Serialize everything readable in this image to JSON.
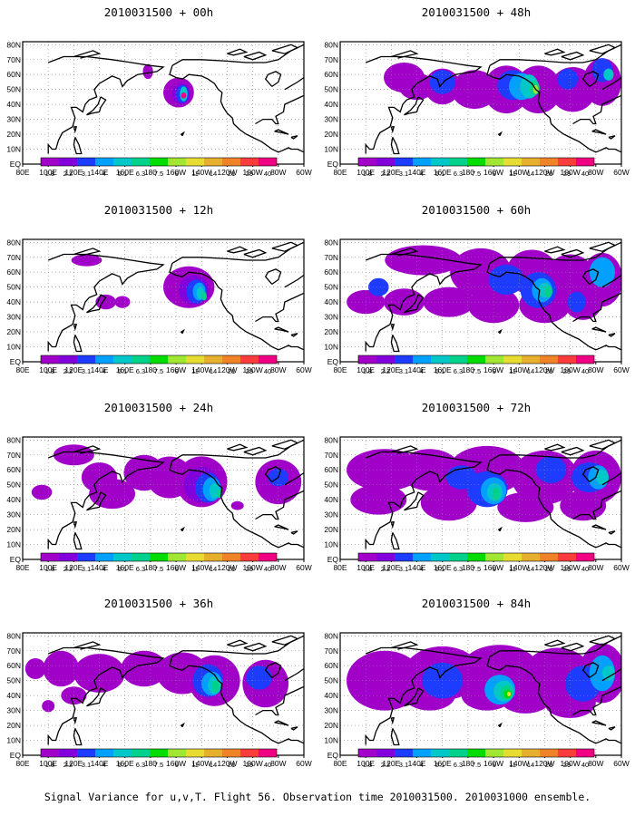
{
  "palette": [
    "#a000c8",
    "#8200dc",
    "#1e3cff",
    "#00a0ff",
    "#00c8c8",
    "#00d28c",
    "#00dc00",
    "#a0e632",
    "#e6dc32",
    "#e6af2d",
    "#f08228",
    "#fa3c3c",
    "#f00082"
  ],
  "colorbar_labels": [
    "1.8",
    "2.2",
    "3.1",
    "4",
    "5.1",
    "6.3",
    "7.5",
    "9",
    "11",
    "14",
    "21",
    "29",
    "40"
  ],
  "lon_labels": [
    "80E",
    "100E",
    "120E",
    "140E",
    "160E",
    "180",
    "160W",
    "140W",
    "120W",
    "100W",
    "80W",
    "60W"
  ],
  "lat_labels": [
    "80N",
    "70N",
    "60N",
    "50N",
    "40N",
    "30N",
    "20N",
    "10N",
    "EQ"
  ],
  "footer": "Signal Variance for u,v,T. Flight 56. Observation time 2010031500. 2010031000 ensemble.",
  "chart_data": [
    {
      "type": "heatmap",
      "title": "2010031500 + 00h",
      "lead": 0
    },
    {
      "type": "heatmap",
      "title": "2010031500 + 48h",
      "lead": 48
    },
    {
      "type": "heatmap",
      "title": "2010031500 + 12h",
      "lead": 12
    },
    {
      "type": "heatmap",
      "title": "2010031500 + 60h",
      "lead": 60
    },
    {
      "type": "heatmap",
      "title": "2010031500 + 24h",
      "lead": 24
    },
    {
      "type": "heatmap",
      "title": "2010031500 + 72h",
      "lead": 72
    },
    {
      "type": "heatmap",
      "title": "2010031500 + 36h",
      "lead": 36
    },
    {
      "type": "heatmap",
      "title": "2010031500 + 84h",
      "lead": 84
    }
  ]
}
